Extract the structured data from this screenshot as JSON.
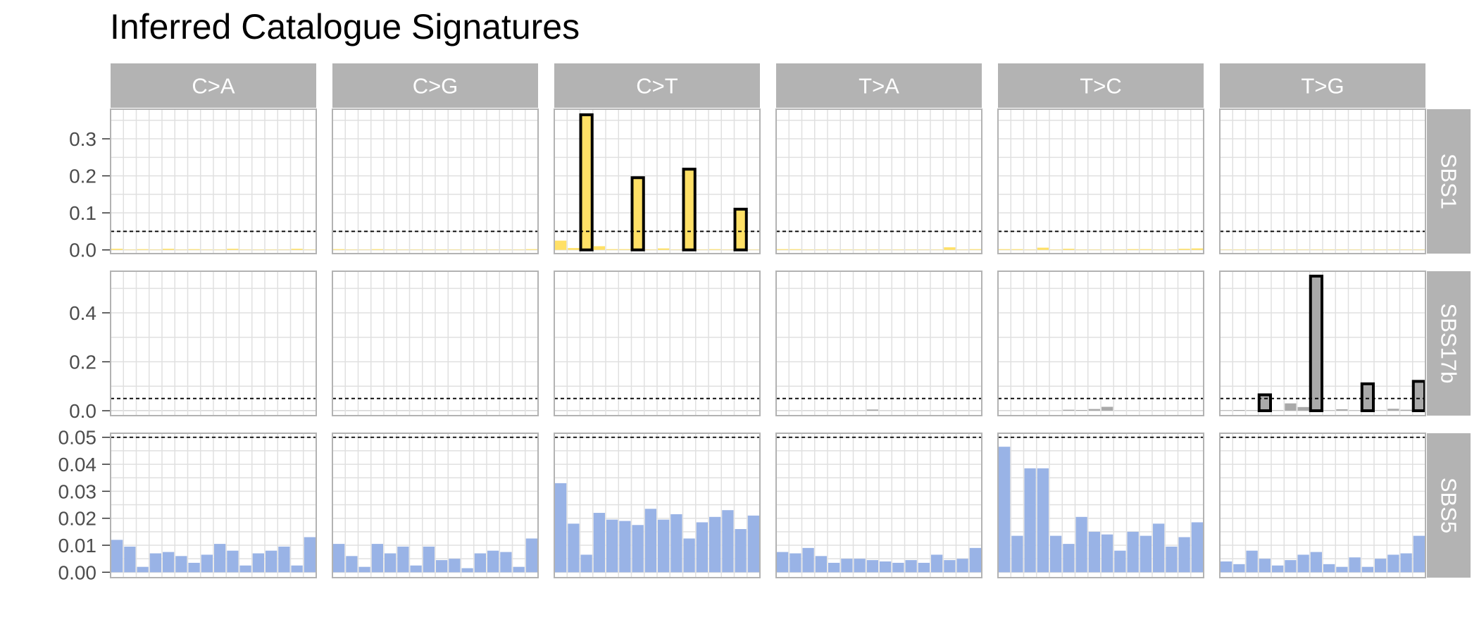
{
  "chart_data": {
    "type": "bar",
    "title": "Inferred Catalogue Signatures",
    "xlabel": "",
    "ylabel": "",
    "threshold": 0.05,
    "colors": {
      "strip_bg": "#b3b3b3",
      "strip_text": "#ffffff",
      "panel_border": "#b3b3b3",
      "grid": "#e0e0e0",
      "threshold_line": "#000000",
      "highlight_border": "#000000"
    },
    "columns": [
      "C>A",
      "C>G",
      "C>T",
      "T>A",
      "T>C",
      "T>G"
    ],
    "rows": [
      {
        "name": "SBS1",
        "color": "#ffe066",
        "ylim": [
          -0.01,
          0.38
        ],
        "yticks": [
          0.0,
          0.1,
          0.2,
          0.3
        ],
        "yticklabels": [
          "0.0",
          "0.1",
          "0.2",
          "0.3"
        ],
        "values": [
          [
            0.003,
            0.001,
            0.002,
            0.001,
            0.003,
            0.001,
            0.002,
            0.001,
            0.001,
            0.003,
            0.001,
            0.001,
            0.001,
            0.001,
            0.003,
            0.001
          ],
          [
            0.002,
            0.001,
            0.001,
            0.002,
            0.001,
            0.001,
            0.001,
            0.001,
            0.001,
            0.001,
            0.001,
            0.001,
            0.001,
            0.001,
            0.001,
            0.002
          ],
          [
            0.025,
            0.005,
            0.365,
            0.01,
            0.002,
            0.002,
            0.195,
            0.001,
            0.004,
            0.001,
            0.218,
            0.001,
            0.002,
            0.001,
            0.11,
            0.001
          ],
          [
            0.002,
            0.002,
            0.001,
            0.001,
            0.001,
            0.001,
            0.001,
            0.001,
            0.001,
            0.001,
            0.001,
            0.001,
            0.001,
            0.007,
            0.001,
            0.002
          ],
          [
            0.002,
            0.002,
            0.001,
            0.006,
            0.001,
            0.003,
            0.001,
            0.001,
            0.001,
            0.001,
            0.002,
            0.002,
            0.001,
            0.001,
            0.003,
            0.004
          ],
          [
            0.001,
            0.001,
            0.001,
            0.001,
            0.001,
            0.001,
            0.001,
            0.001,
            0.001,
            0.001,
            0.001,
            0.001,
            0.001,
            0.001,
            0.001,
            0.001
          ]
        ]
      },
      {
        "name": "SBS17b",
        "color": "#a9a9a9",
        "ylim": [
          -0.02,
          0.57
        ],
        "yticks": [
          0.0,
          0.2,
          0.4
        ],
        "yticklabels": [
          "0.0",
          "0.2",
          "0.4"
        ],
        "values": [
          [
            0.001,
            0.001,
            0.001,
            0.001,
            0.001,
            0.001,
            0.001,
            0.001,
            0.001,
            0.001,
            0.001,
            0.001,
            0.001,
            0.001,
            0.001,
            0.001
          ],
          [
            0.001,
            0.001,
            0.001,
            0.001,
            0.001,
            0.001,
            0.001,
            0.001,
            0.001,
            0.001,
            0.001,
            0.001,
            0.001,
            0.001,
            0.001,
            0.001
          ],
          [
            0.001,
            0.001,
            0.001,
            0.001,
            0.001,
            0.001,
            0.001,
            0.001,
            0.001,
            0.001,
            0.001,
            0.001,
            0.001,
            0.001,
            0.001,
            0.001
          ],
          [
            0.001,
            0.001,
            0.001,
            0.001,
            0.001,
            0.001,
            0.001,
            0.005,
            0.001,
            0.001,
            0.001,
            0.001,
            0.001,
            0.001,
            0.001,
            0.001
          ],
          [
            0.001,
            0.001,
            0.001,
            0.001,
            0.001,
            0.004,
            0.003,
            0.007,
            0.016,
            0.001,
            0.001,
            0.001,
            0.001,
            0.001,
            0.001,
            0.001
          ],
          [
            0.002,
            0.003,
            0.002,
            0.065,
            0.002,
            0.03,
            0.015,
            0.55,
            0.002,
            0.006,
            0.002,
            0.11,
            0.002,
            0.008,
            0.004,
            0.12
          ]
        ]
      },
      {
        "name": "SBS5",
        "color": "#99b3e6",
        "ylim": [
          -0.002,
          0.0515
        ],
        "yticks": [
          0.0,
          0.01,
          0.02,
          0.03,
          0.04,
          0.05
        ],
        "yticklabels": [
          "0.00",
          "0.01",
          "0.02",
          "0.03",
          "0.04",
          "0.05"
        ],
        "values": [
          [
            0.012,
            0.0095,
            0.002,
            0.007,
            0.0075,
            0.006,
            0.0035,
            0.0065,
            0.0105,
            0.008,
            0.0025,
            0.007,
            0.008,
            0.0095,
            0.0025,
            0.013
          ],
          [
            0.0105,
            0.006,
            0.002,
            0.0105,
            0.007,
            0.0095,
            0.0025,
            0.0095,
            0.0045,
            0.005,
            0.0015,
            0.007,
            0.008,
            0.0075,
            0.002,
            0.0125
          ],
          [
            0.033,
            0.018,
            0.0065,
            0.022,
            0.0195,
            0.019,
            0.0175,
            0.0235,
            0.0195,
            0.0215,
            0.0125,
            0.0185,
            0.0205,
            0.023,
            0.016,
            0.021
          ],
          [
            0.0075,
            0.007,
            0.009,
            0.006,
            0.0035,
            0.005,
            0.005,
            0.0045,
            0.004,
            0.0035,
            0.0045,
            0.0035,
            0.0065,
            0.0045,
            0.005,
            0.009
          ],
          [
            0.0465,
            0.0135,
            0.0385,
            0.0385,
            0.0135,
            0.0105,
            0.0205,
            0.015,
            0.014,
            0.008,
            0.015,
            0.0135,
            0.018,
            0.0095,
            0.013,
            0.0185
          ],
          [
            0.004,
            0.003,
            0.008,
            0.005,
            0.0025,
            0.0045,
            0.0065,
            0.0075,
            0.003,
            0.002,
            0.0055,
            0.002,
            0.005,
            0.0065,
            0.007,
            0.0135
          ]
        ]
      }
    ]
  }
}
